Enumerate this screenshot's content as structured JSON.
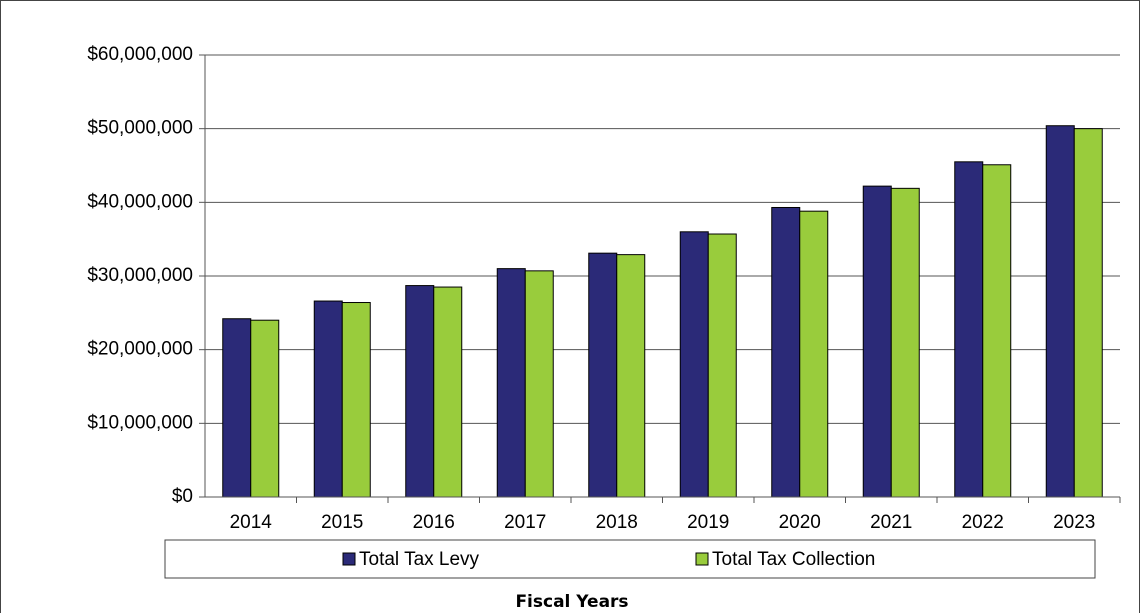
{
  "chart_data": {
    "type": "bar",
    "categories": [
      "2014",
      "2015",
      "2016",
      "2017",
      "2018",
      "2019",
      "2020",
      "2021",
      "2022",
      "2023"
    ],
    "series": [
      {
        "name": "Total Tax Levy",
        "color": "#2b2a78",
        "values": [
          24200000,
          26600000,
          28700000,
          31000000,
          33100000,
          36000000,
          39300000,
          42200000,
          45500000,
          50400000
        ]
      },
      {
        "name": "Total Tax Collection",
        "color": "#99cc3c",
        "values": [
          24000000,
          26400000,
          28500000,
          30700000,
          32900000,
          35700000,
          38800000,
          41900000,
          45100000,
          50000000
        ]
      }
    ],
    "ylim": [
      0,
      60000000
    ],
    "yticks": [
      {
        "value": 0,
        "label": "$0"
      },
      {
        "value": 10000000,
        "label": "$10,000,000"
      },
      {
        "value": 20000000,
        "label": "$20,000,000"
      },
      {
        "value": 30000000,
        "label": "$30,000,000"
      },
      {
        "value": 40000000,
        "label": "$40,000,000"
      },
      {
        "value": 50000000,
        "label": "$50,000,000"
      },
      {
        "value": 60000000,
        "label": "$60,000,000"
      }
    ],
    "grid": true,
    "x_label": "Fiscal Years",
    "legend": "bottom"
  }
}
